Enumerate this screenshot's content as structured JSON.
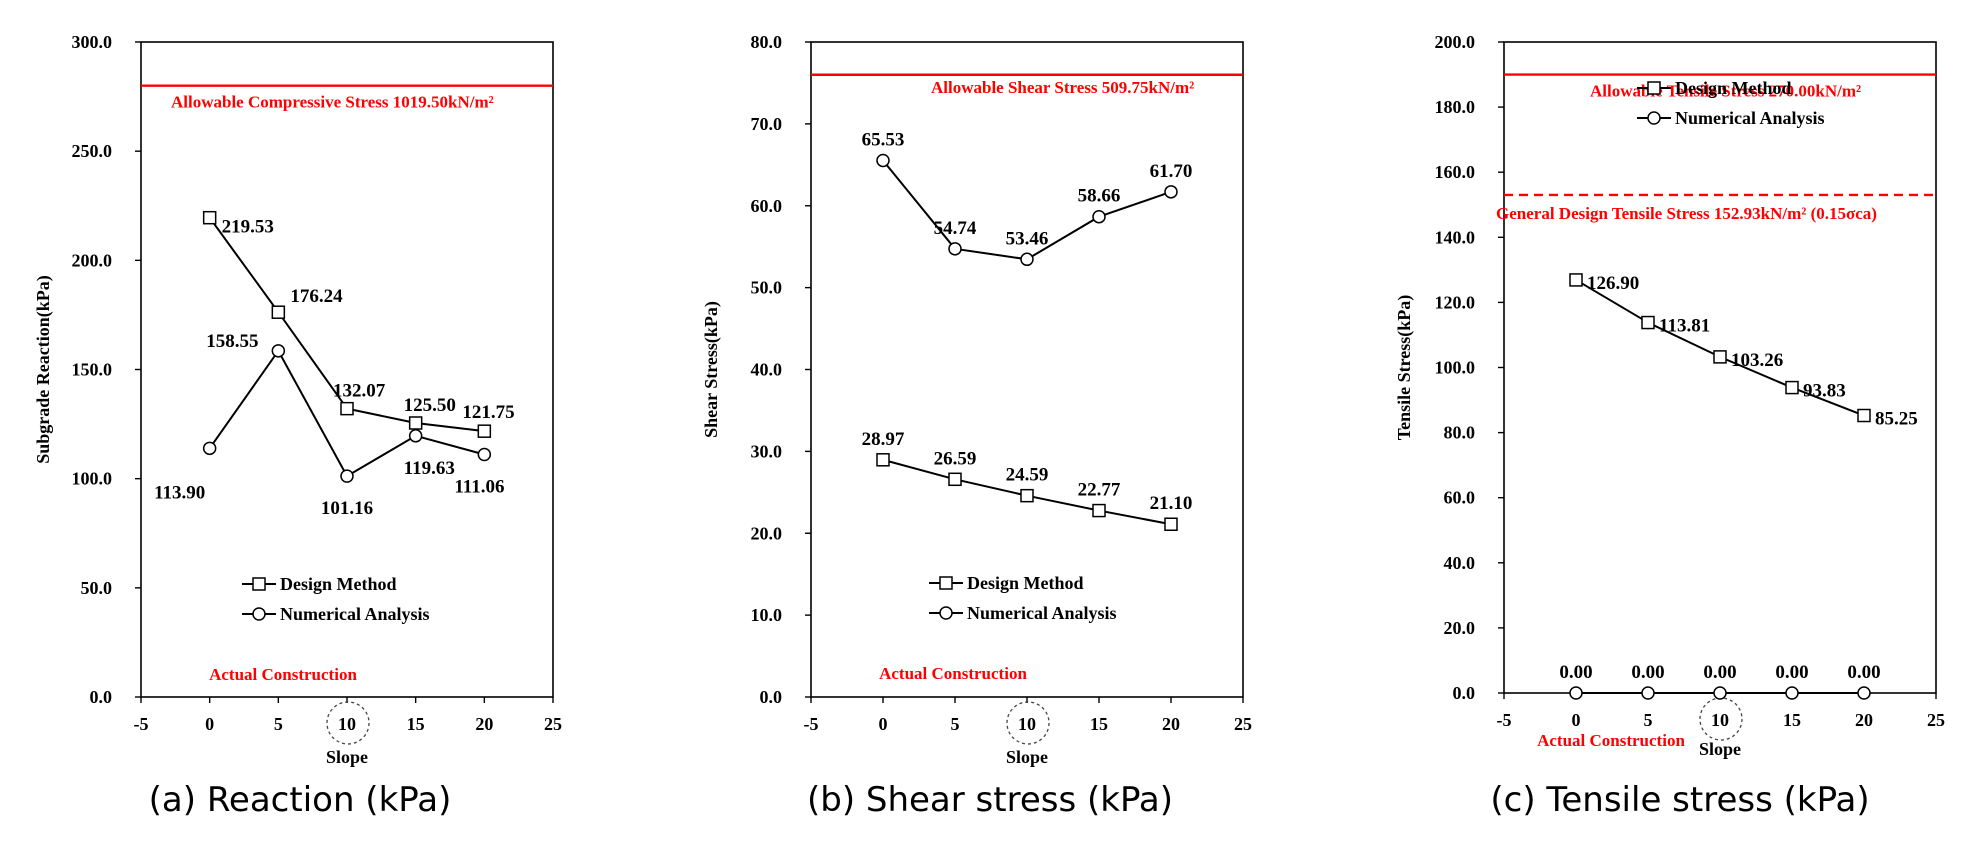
{
  "charts": [
    {
      "type": "line",
      "caption": "(a) Reaction (kPa)",
      "xlabel": "Slope",
      "ylabel": "Subgrade Reaction(kPa)",
      "xlim": [
        -5,
        25
      ],
      "ylim": [
        0,
        300
      ],
      "x_ticks": [
        -5,
        0,
        5,
        10,
        15,
        20,
        25
      ],
      "y_ticks": [
        0,
        50,
        100,
        150,
        200,
        250,
        300
      ],
      "y_tick_labels": [
        "0.0",
        "50.0",
        "100.0",
        "150.0",
        "200.0",
        "250.0",
        "300.0"
      ],
      "circled_tick": 10,
      "grid": false,
      "legend_position": "bottom-center",
      "series": [
        {
          "name": "Design Method",
          "marker": "square",
          "x": [
            0,
            5,
            10,
            15,
            20
          ],
          "values": [
            219.53,
            176.24,
            132.07,
            125.5,
            121.75
          ],
          "labels": [
            "219.53",
            "176.24",
            "132.07",
            "125.50",
            "121.75"
          ]
        },
        {
          "name": "Numerical Analysis",
          "marker": "circle",
          "x": [
            0,
            5,
            10,
            15,
            20
          ],
          "values": [
            113.9,
            158.55,
            101.16,
            119.63,
            111.06
          ],
          "labels": [
            "113.90",
            "158.55",
            "101.16",
            "119.63",
            "111.06"
          ]
        }
      ],
      "reference_lines": [
        {
          "label": "Allowable Compressive Stress 1019.50kN/m²",
          "color": "#ff0000",
          "style": "solid",
          "y": 280
        }
      ],
      "annotations": [
        {
          "text": "Actual Construction",
          "color": "#ff0000"
        }
      ]
    },
    {
      "type": "line",
      "caption": "(b) Shear stress (kPa)",
      "xlabel": "Slope",
      "ylabel": "Shear Stress(kPa)",
      "xlim": [
        -5,
        25
      ],
      "ylim": [
        0,
        80
      ],
      "x_ticks": [
        -5,
        0,
        5,
        10,
        15,
        20,
        25
      ],
      "y_ticks": [
        0,
        10,
        20,
        30,
        40,
        50,
        60,
        70,
        80
      ],
      "y_tick_labels": [
        "0.0",
        "10.0",
        "20.0",
        "30.0",
        "40.0",
        "50.0",
        "60.0",
        "70.0",
        "80.0"
      ],
      "circled_tick": 10,
      "grid": false,
      "legend_position": "bottom-center",
      "series": [
        {
          "name": "Design Method",
          "marker": "square",
          "x": [
            0,
            5,
            10,
            15,
            20
          ],
          "values": [
            28.97,
            26.59,
            24.59,
            22.77,
            21.1
          ],
          "labels": [
            "28.97",
            "26.59",
            "24.59",
            "22.77",
            "21.10"
          ]
        },
        {
          "name": "Numerical Analysis",
          "marker": "circle",
          "x": [
            0,
            5,
            10,
            15,
            20
          ],
          "values": [
            65.53,
            54.74,
            53.46,
            58.66,
            61.7
          ],
          "labels": [
            "65.53",
            "54.74",
            "53.46",
            "58.66",
            "61.70"
          ]
        }
      ],
      "reference_lines": [
        {
          "label": "Allowable Shear Stress 509.75kN/m²",
          "color": "#ff0000",
          "style": "solid",
          "y": 76
        }
      ],
      "annotations": [
        {
          "text": "Actual Construction",
          "color": "#ff0000"
        }
      ]
    },
    {
      "type": "line",
      "caption": "(c) Tensile stress (kPa)",
      "xlabel": "Slope",
      "ylabel": "Tensile Stress(kPa)",
      "xlim": [
        -5,
        25
      ],
      "ylim": [
        0,
        200
      ],
      "x_ticks": [
        -5,
        0,
        5,
        10,
        15,
        20,
        25
      ],
      "y_ticks": [
        0,
        20,
        40,
        60,
        80,
        100,
        120,
        140,
        160,
        180,
        200
      ],
      "y_tick_labels": [
        "0.0",
        "20.0",
        "40.0",
        "60.0",
        "80.0",
        "100.0",
        "120.0",
        "140.0",
        "160.0",
        "180.0",
        "200.0"
      ],
      "circled_tick": 10,
      "grid": false,
      "legend_position": "top-center",
      "series": [
        {
          "name": "Design Method",
          "marker": "square",
          "x": [
            0,
            5,
            10,
            15,
            20
          ],
          "values": [
            126.9,
            113.81,
            103.26,
            93.83,
            85.25
          ],
          "labels": [
            "126.90",
            "113.81",
            "103.26",
            "93.83",
            "85.25"
          ]
        },
        {
          "name": "Numerical Analysis",
          "marker": "circle",
          "x": [
            0,
            5,
            10,
            15,
            20
          ],
          "values": [
            0,
            0,
            0,
            0,
            0
          ],
          "labels": [
            "0.00",
            "0.00",
            "0.00",
            "0.00",
            "0.00"
          ]
        }
      ],
      "reference_lines": [
        {
          "label": "Allowable Tensile Stress 270.00kN/m²",
          "color": "#ff0000",
          "style": "solid",
          "y": 190
        },
        {
          "label": "General Design Tensile Stress 152.93kN/m² (0.15σca)",
          "color": "#ff0000",
          "style": "dashed",
          "y": 153
        }
      ],
      "annotations": [
        {
          "text": "Actual Construction",
          "color": "#ff0000"
        }
      ]
    }
  ]
}
